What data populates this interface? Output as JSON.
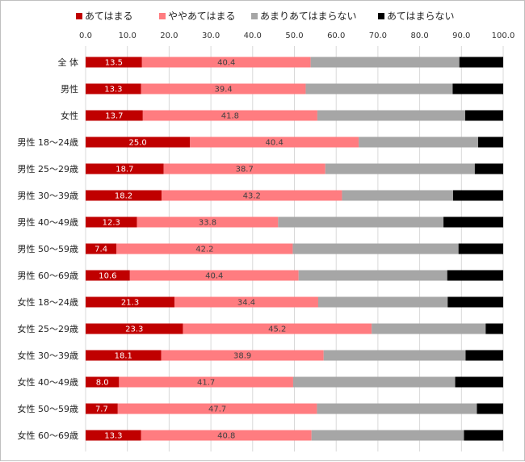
{
  "chart_data": {
    "type": "bar",
    "orientation": "horizontal",
    "stacked": true,
    "percent_stacked": true,
    "title": "",
    "xlabel": "",
    "ylabel": "",
    "xlim": [
      0,
      100
    ],
    "x_ticks": [
      "0.0",
      "10.0",
      "20.0",
      "30.0",
      "40.0",
      "50.0",
      "60.0",
      "70.0",
      "80.0",
      "90.0",
      "100.0"
    ],
    "x_axis_position": "top",
    "grid": true,
    "legend_position": "top",
    "categories": [
      "全 体",
      "男性",
      "女性",
      "男性 18～24歳",
      "男性 25～29歳",
      "男性 30～39歳",
      "男性 40～49歳",
      "男性 50～59歳",
      "男性 60～69歳",
      "女性 18～24歳",
      "女性 25～29歳",
      "女性 30～39歳",
      "女性 40～49歳",
      "女性 50～59歳",
      "女性 60～69歳"
    ],
    "series": [
      {
        "name": "あてはまる",
        "color": "#c00000",
        "label_color": "#ffffff",
        "show_labels": true,
        "values": [
          13.5,
          13.3,
          13.7,
          25.0,
          18.7,
          18.2,
          12.3,
          7.4,
          10.6,
          21.3,
          23.3,
          18.1,
          8.0,
          7.7,
          13.3
        ],
        "labels": [
          "13.5",
          "13.3",
          "13.7",
          "25.0",
          "18.7",
          "18.2",
          "12.3",
          "7.4",
          "10.6",
          "21.3",
          "23.3",
          "18.1",
          "8.0",
          "7.7",
          "13.3"
        ]
      },
      {
        "name": "ややあてはまる",
        "color": "#ff7c80",
        "label_color": "#404040",
        "show_labels": true,
        "values": [
          40.4,
          39.4,
          41.8,
          40.4,
          38.7,
          43.2,
          33.8,
          42.2,
          40.4,
          34.4,
          45.2,
          38.9,
          41.7,
          47.7,
          40.8
        ],
        "labels": [
          "40.4",
          "39.4",
          "41.8",
          "40.4",
          "38.7",
          "43.2",
          "33.8",
          "42.2",
          "40.4",
          "34.4",
          "45.2",
          "38.9",
          "41.7",
          "47.7",
          "40.8"
        ]
      },
      {
        "name": "あまりあてはまらない",
        "color": "#a6a6a6",
        "show_labels": false,
        "values": [
          35.6,
          35.2,
          35.4,
          28.6,
          35.8,
          26.6,
          39.6,
          39.7,
          35.6,
          31.0,
          27.3,
          34.0,
          38.8,
          38.3,
          36.5
        ]
      },
      {
        "name": "あてはまらない",
        "color": "#000000",
        "show_labels": false,
        "values": [
          10.5,
          12.1,
          9.1,
          6.0,
          6.8,
          12.0,
          14.3,
          10.7,
          13.4,
          13.3,
          4.2,
          9.0,
          11.5,
          6.3,
          9.4
        ]
      }
    ]
  }
}
